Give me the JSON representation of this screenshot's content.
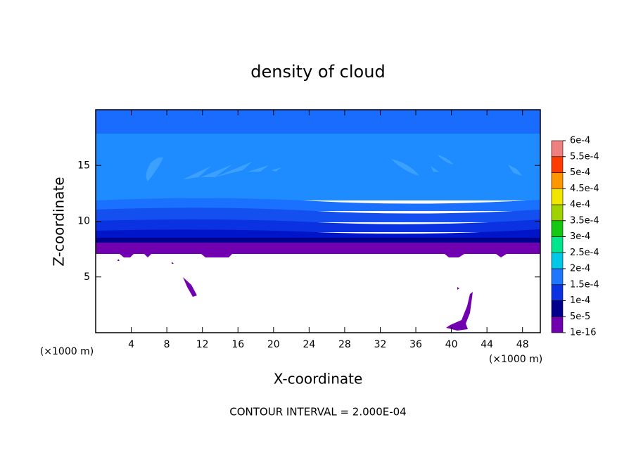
{
  "chart_data": {
    "type": "contour",
    "title": "density of cloud",
    "xlabel": "X-coordinate",
    "ylabel": "Z-coordinate",
    "x_unit": "(×1000 m)",
    "y_unit": "(×1000 m)",
    "footer": "CONTOUR INTERVAL = 2.000E-04",
    "xlim": [
      0,
      50
    ],
    "xticks": [
      4,
      8,
      12,
      16,
      20,
      24,
      28,
      32,
      36,
      40,
      44,
      48
    ],
    "ylim": [
      0,
      20
    ],
    "yticks": [
      5,
      10,
      15
    ],
    "colorbar": {
      "levels": [
        {
          "value": 1e-16,
          "label": "1e-16"
        },
        {
          "value": 5e-05,
          "label": "5e-5"
        },
        {
          "value": 0.0001,
          "label": "1e-4"
        },
        {
          "value": 0.00015,
          "label": "1.5e-4"
        },
        {
          "value": 0.0002,
          "label": "2e-4"
        },
        {
          "value": 0.00025,
          "label": "2.5e-4"
        },
        {
          "value": 0.0003,
          "label": "3e-4"
        },
        {
          "value": 0.00035,
          "label": "3.5e-4"
        },
        {
          "value": 0.0004,
          "label": "4e-4"
        },
        {
          "value": 0.00045,
          "label": "4.5e-4"
        },
        {
          "value": 0.0005,
          "label": "5e-4"
        },
        {
          "value": 0.00055,
          "label": "5.5e-4"
        },
        {
          "value": 0.0006,
          "label": "6e-4"
        }
      ],
      "colors": [
        "#7000b0",
        "#00008c",
        "#0a32e0",
        "#1e78ff",
        "#00c8e6",
        "#00e68c",
        "#14c814",
        "#a0d200",
        "#f0e600",
        "#ff9600",
        "#ff3c00",
        "#f08080"
      ]
    }
  }
}
